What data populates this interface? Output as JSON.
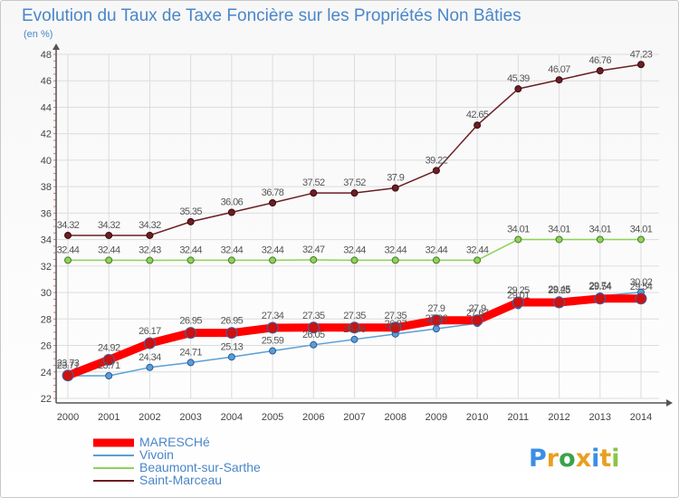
{
  "header": {
    "title": "Evolution du Taux de Taxe Foncière sur les Propriétés Non Bâties",
    "unit": "(en %)"
  },
  "brand": {
    "letters": [
      "P",
      "r",
      "o",
      "x",
      "i",
      "t",
      "i"
    ],
    "colors": [
      "#3a8ee6",
      "#e8a020",
      "#3aa24a",
      "#e8a020",
      "#3a8ee6",
      "#e8a020",
      "#8bc34a"
    ]
  },
  "chart_data": {
    "type": "line",
    "x": [
      "2000",
      "2001",
      "2002",
      "2003",
      "2004",
      "2005",
      "2006",
      "2007",
      "2008",
      "2009",
      "2010",
      "2011",
      "2012",
      "2013",
      "2014"
    ],
    "ylim": [
      22,
      48
    ],
    "yticks": [
      22,
      24,
      26,
      28,
      30,
      32,
      34,
      36,
      38,
      40,
      42,
      44,
      46,
      48
    ],
    "grid": true,
    "legend_position": "bottom-left",
    "series": [
      {
        "name": "MARESCHé",
        "color": "#ff0000",
        "values": [
          23.73,
          24.92,
          26.17,
          26.95,
          26.95,
          27.34,
          27.35,
          27.35,
          27.35,
          27.9,
          27.9,
          29.25,
          29.25,
          29.54,
          29.54
        ],
        "labels": [
          "23.73",
          "24.92",
          "26.17",
          "26.95",
          "26.95",
          "27.34",
          "27.35",
          "27.35",
          "27.35",
          "27.9",
          "27.9",
          "29.25",
          "29.25",
          "29.54",
          "29.54"
        ]
      },
      {
        "name": "Vivoin",
        "color": "#5a9fd4",
        "values": [
          23.71,
          23.71,
          24.34,
          24.71,
          25.13,
          25.59,
          26.05,
          26.46,
          26.87,
          27.26,
          27.67,
          29.01,
          29.45,
          29.74,
          30.02
        ],
        "labels": [
          "23.71",
          "23.71",
          "24.34",
          "24.71",
          "25.13",
          "25.59",
          "26.05",
          "26.46",
          "26.87",
          "27.26",
          "27.67",
          "29.01",
          "29.45",
          "29.74",
          "30.02"
        ]
      },
      {
        "name": "Beaumont-sur-Sarthe",
        "color": "#8cd35a",
        "values": [
          32.44,
          32.44,
          32.43,
          32.44,
          32.44,
          32.44,
          32.47,
          32.44,
          32.44,
          32.44,
          32.44,
          34.01,
          34.01,
          34.01,
          34.01
        ],
        "labels": [
          "32.44",
          "32.44",
          "32.43",
          "32.44",
          "32.44",
          "32.44",
          "32.47",
          "32.44",
          "32.44",
          "32.44",
          "32.44",
          "34.01",
          "34.01",
          "34.01",
          "34.01"
        ]
      },
      {
        "name": "Saint-Marceau",
        "color": "#6b1f24",
        "values": [
          34.32,
          34.32,
          34.32,
          35.35,
          36.06,
          36.78,
          37.52,
          37.52,
          37.9,
          39.22,
          42.65,
          45.39,
          46.07,
          46.76,
          47.23
        ],
        "labels": [
          "34.32",
          "34.32",
          "34.32",
          "35.35",
          "36.06",
          "36.78",
          "37.52",
          "37.52",
          "37.9",
          "39.22",
          "42.65",
          "45.39",
          "46.07",
          "46.76",
          "47.23"
        ]
      }
    ]
  }
}
